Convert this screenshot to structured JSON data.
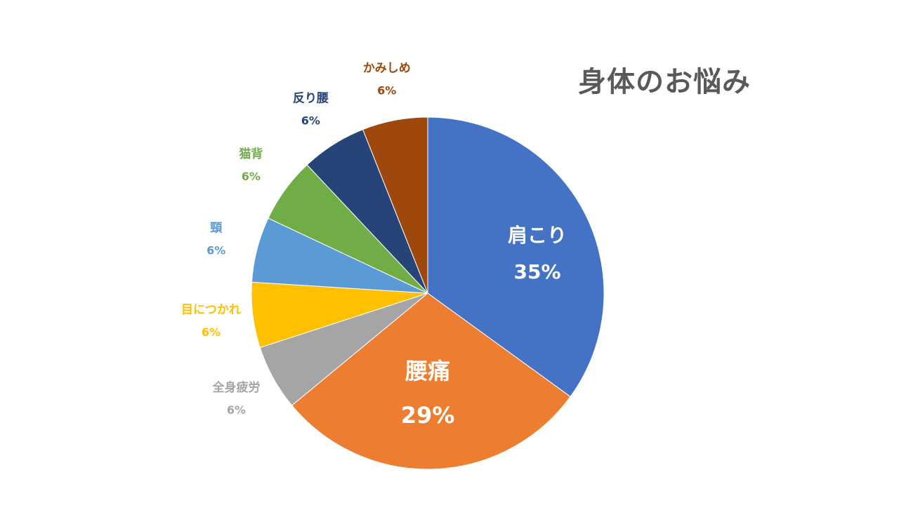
{
  "chart_data": {
    "type": "pie",
    "title": "身体のお悩み",
    "slices": [
      {
        "label": "肩こり",
        "value": 35,
        "value_label": "35%",
        "color": "#4472C4",
        "label_color": "#FFFFFF",
        "label_position": "inside"
      },
      {
        "label": "腰痛",
        "value": 29,
        "value_label": "29%",
        "color": "#ED7D31",
        "label_color": "#FFFFFF",
        "label_position": "inside"
      },
      {
        "label": "全身疲労",
        "value": 6,
        "value_label": "6%",
        "color": "#A5A5A5",
        "label_color": "#A5A5A5",
        "label_position": "outside"
      },
      {
        "label": "目につかれ",
        "value": 6,
        "value_label": "6%",
        "color": "#FFC000",
        "label_color": "#FFC000",
        "label_position": "outside"
      },
      {
        "label": "頸",
        "value": 6,
        "value_label": "6%",
        "color": "#5B9BD5",
        "label_color": "#5B9BD5",
        "label_position": "outside"
      },
      {
        "label": "猫背",
        "value": 6,
        "value_label": "6%",
        "color": "#70AD47",
        "label_color": "#70AD47",
        "label_position": "outside"
      },
      {
        "label": "反り腰",
        "value": 6,
        "value_label": "6%",
        "color": "#264478",
        "label_color": "#264478",
        "label_position": "outside"
      },
      {
        "label": "かみしめ",
        "value": 6,
        "value_label": "6%",
        "color": "#9E480E",
        "label_color": "#9E480E",
        "label_position": "outside"
      }
    ],
    "start": "12 o'clock",
    "direction": "clockwise",
    "legend": "none"
  }
}
